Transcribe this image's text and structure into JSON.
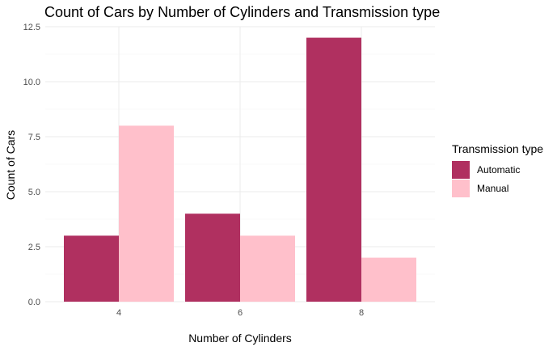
{
  "chart_data": {
    "type": "bar",
    "title": "Count of Cars by Number of Cylinders and Transmission type",
    "xlabel": "Number of Cylinders",
    "ylabel": "Count of Cars",
    "categories": [
      "4",
      "6",
      "8"
    ],
    "series": [
      {
        "name": "Automatic",
        "values": [
          3,
          4,
          12
        ],
        "color": "#B03060"
      },
      {
        "name": "Manual",
        "values": [
          8,
          3,
          2
        ],
        "color": "#FFC0CB"
      }
    ],
    "yticks": [
      "0.0",
      "2.5",
      "5.0",
      "7.5",
      "10.0",
      "12.5"
    ],
    "ylim": [
      0,
      12.5
    ],
    "grid": true,
    "legend": {
      "title": "Transmission type",
      "position": "right"
    }
  }
}
